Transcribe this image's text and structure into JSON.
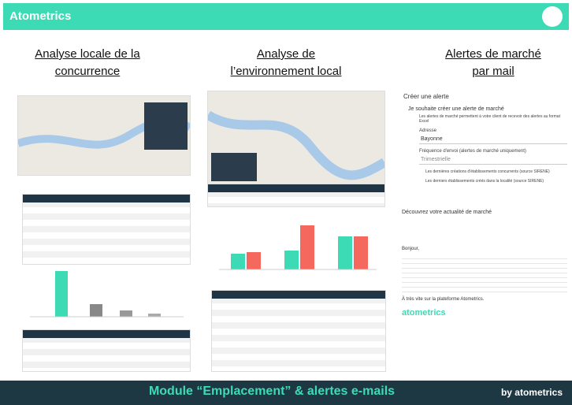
{
  "header": {
    "brand": "Atometrics"
  },
  "columns": [
    {
      "title": "Analyse locale de la concurrence"
    },
    {
      "title": "Analyse de l’environnement local"
    },
    {
      "title": "Alertes de marché par mail"
    }
  ],
  "alert_form": {
    "title": "Créer une alerte",
    "checkbox": "Je souhaite créer une alerte de marché",
    "description": "Les alertes de marché permettent à votre client de recevoir des alertes au format Excel",
    "address_label": "Adresse",
    "address_value": "Bayonne",
    "frequency_label": "Fréquence d'envoi (alertes de marché uniquement)",
    "frequency_value": "Trimestrielle",
    "options": [
      "Les dernières créations d'établissements concurrents (source SIRENE)",
      "Les derniers établissements créés dans la localité (source SIRENE)"
    ]
  },
  "email": {
    "subject": "Découvrez votre actualité de marché",
    "greeting": "Bonjour,",
    "closing": "À très vite sur la plateforme Atometrics.",
    "signature_brand": "atometrics"
  },
  "footer": {
    "title": "Module “Emplacement” & alertes e-mails",
    "by": "by",
    "brand": "atometrics"
  }
}
